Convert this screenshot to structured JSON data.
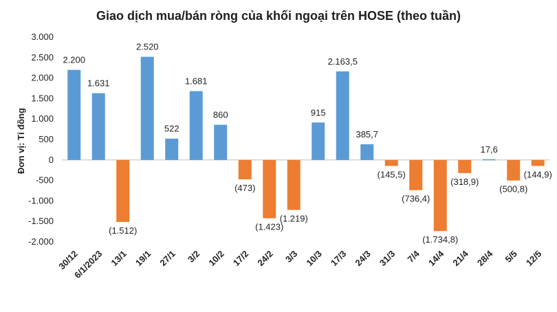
{
  "chart_data": {
    "type": "bar",
    "title": "Giao dịch mua/bán ròng của khối ngoại trên HOSE (theo tuần)",
    "xlabel": "",
    "ylabel": "Đơn vị: Tỉ đồng",
    "ylim": [
      -2000,
      3000
    ],
    "yticks": [
      3000,
      2500,
      2000,
      1500,
      1000,
      500,
      0,
      -500,
      -1000,
      -1500,
      -2000
    ],
    "ytick_labels": [
      "3.000",
      "2.500",
      "2.000",
      "1.500",
      "1.000",
      "500",
      "0",
      "-500",
      "-1.000",
      "-1.500",
      "-2.000"
    ],
    "grid": false,
    "colors": {
      "positive": "#5b9bd5",
      "negative": "#ed7d31"
    },
    "categories": [
      "30/12",
      "6/1/2023",
      "13/1",
      "19/1",
      "27/1",
      "3/2",
      "10/2",
      "17/2",
      "24/2",
      "3/3",
      "10/3",
      "17/3",
      "24/3",
      "31/3",
      "7/4",
      "14/4",
      "21/4",
      "28/4",
      "5/5",
      "12/5"
    ],
    "values": [
      2200,
      1631,
      -1512,
      2520,
      522,
      1681,
      860,
      -473,
      -1423,
      -1219,
      915,
      2163.5,
      385.7,
      -145.5,
      -736.4,
      -1734.8,
      -318.9,
      17.6,
      -500.8,
      -144.9
    ],
    "data_labels": [
      "2.200",
      "1.631",
      "(1.512)",
      "2.520",
      "522",
      "1.681",
      "860",
      "(473)",
      "(1.423)",
      "(1.219)",
      "915",
      "2.163,5",
      "385,7",
      "(145,5)",
      "(736,4)",
      "(1.734,8)",
      "(318,9)",
      "17,6",
      "(500,8)",
      "(144,9)"
    ]
  }
}
